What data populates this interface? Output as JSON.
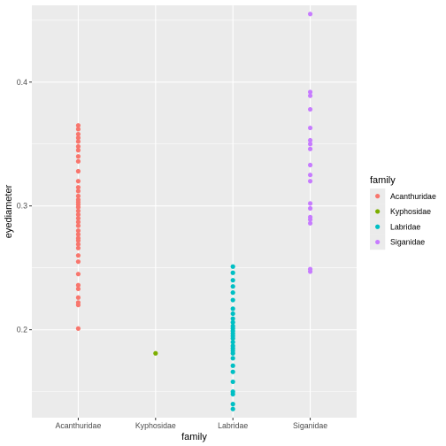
{
  "chart_data": {
    "type": "scatter",
    "xlabel": "family",
    "ylabel": "eyediameter",
    "categories": [
      "Acanthuridae",
      "Kyphosidae",
      "Labridae",
      "Siganidae"
    ],
    "ylim": [
      0.129,
      0.462
    ],
    "y_ticks": [
      0.2,
      0.3,
      0.4
    ],
    "y_tick_labels": [
      "0.2",
      "0.3",
      "0.4"
    ],
    "grid": true,
    "legend": {
      "title": "family",
      "placement": "right",
      "items": [
        "Acanthuridae",
        "Kyphosidae",
        "Labridae",
        "Siganidae"
      ]
    },
    "colors": {
      "Acanthuridae": "#F8766D",
      "Kyphosidae": "#7CAE00",
      "Labridae": "#00BFC4",
      "Siganidae": "#C77CFF"
    },
    "panel_background": "#EBEBEB",
    "series": [
      {
        "name": "Acanthuridae",
        "values": [
          0.365,
          0.362,
          0.358,
          0.355,
          0.352,
          0.348,
          0.345,
          0.34,
          0.336,
          0.328,
          0.32,
          0.315,
          0.312,
          0.308,
          0.305,
          0.303,
          0.301,
          0.299,
          0.296,
          0.293,
          0.29,
          0.287,
          0.284,
          0.28,
          0.277,
          0.274,
          0.272,
          0.269,
          0.266,
          0.26,
          0.255,
          0.245,
          0.236,
          0.233,
          0.226,
          0.222,
          0.22,
          0.201
        ]
      },
      {
        "name": "Kyphosidae",
        "values": [
          0.181
        ]
      },
      {
        "name": "Labridae",
        "values": [
          0.251,
          0.246,
          0.24,
          0.235,
          0.23,
          0.224,
          0.217,
          0.213,
          0.209,
          0.206,
          0.203,
          0.201,
          0.199,
          0.197,
          0.195,
          0.193,
          0.19,
          0.187,
          0.185,
          0.183,
          0.181,
          0.177,
          0.171,
          0.166,
          0.158,
          0.15,
          0.148,
          0.14,
          0.136
        ]
      },
      {
        "name": "Siganidae",
        "values": [
          0.455,
          0.392,
          0.389,
          0.378,
          0.363,
          0.353,
          0.35,
          0.346,
          0.333,
          0.325,
          0.32,
          0.302,
          0.298,
          0.291,
          0.289,
          0.286,
          0.249,
          0.247
        ]
      }
    ]
  }
}
